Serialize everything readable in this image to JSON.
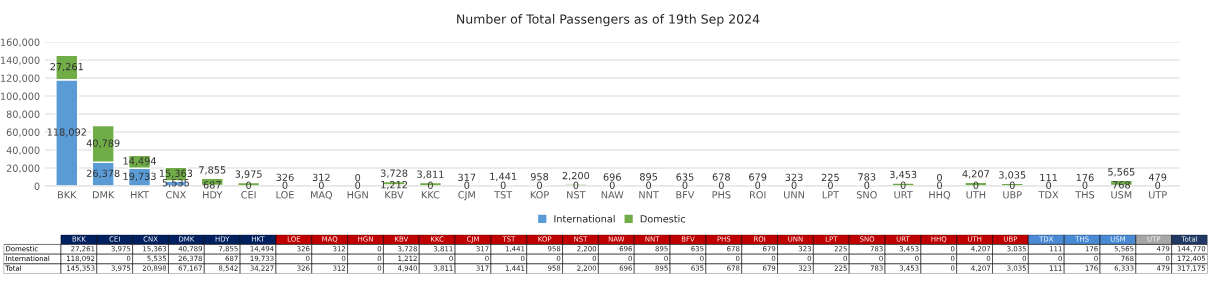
{
  "chart_data": [
    {
      "type": "bar",
      "title": "Number of Total Passengers as of 19th Sep 2024",
      "stacked": true,
      "categories": [
        "BKK",
        "DMK",
        "HKT",
        "CNX",
        "HDY",
        "CEI",
        "LOE",
        "MAQ",
        "HGN",
        "KBV",
        "KKC",
        "CJM",
        "TST",
        "KOP",
        "NST",
        "NAW",
        "NNT",
        "BFV",
        "PHS",
        "ROI",
        "UNN",
        "LPT",
        "SNO",
        "URT",
        "HHQ",
        "UTH",
        "UBP",
        "TDX",
        "THS",
        "USM",
        "UTP"
      ],
      "series": [
        {
          "name": "International",
          "color": "#5b9bd5",
          "values": [
            118092,
            26378,
            19733,
            5535,
            687,
            0,
            0,
            0,
            0,
            1212,
            0,
            0,
            0,
            0,
            0,
            0,
            0,
            0,
            0,
            0,
            0,
            0,
            0,
            0,
            0,
            0,
            0,
            0,
            0,
            768,
            0
          ],
          "value_labels": [
            "118,092",
            "26,378",
            "19,733",
            "5,535",
            "687",
            "0",
            "0",
            "0",
            "0",
            "1,212",
            "0",
            "0",
            "0",
            "0",
            "0",
            "0",
            "0",
            "0",
            "0",
            "0",
            "0",
            "0",
            "0",
            "0",
            "0",
            "0",
            "0",
            "0",
            "0",
            "768",
            "0"
          ]
        },
        {
          "name": "Domestic",
          "color": "#70ad47",
          "values": [
            27261,
            40789,
            14494,
            15363,
            7855,
            3975,
            326,
            312,
            0,
            3728,
            3811,
            317,
            1441,
            958,
            2200,
            696,
            895,
            635,
            678,
            679,
            323,
            225,
            783,
            3453,
            0,
            4207,
            3035,
            111,
            176,
            5565,
            479
          ],
          "value_labels": [
            "27,261",
            "40,789",
            "14,494",
            "15,363",
            "7,855",
            "3,975",
            "326",
            "312",
            "0",
            "3,728",
            "3,811",
            "317",
            "1,441",
            "958",
            "2,200",
            "696",
            "895",
            "635",
            "678",
            "679",
            "323",
            "225",
            "783",
            "3,453",
            "0",
            "4,207",
            "3,035",
            "111",
            "176",
            "5,565",
            "479"
          ]
        }
      ],
      "ylim": [
        0,
        160000
      ],
      "yticks": [
        {
          "value": 0,
          "label": "0"
        },
        {
          "value": 20000,
          "label": "20,000"
        },
        {
          "value": 40000,
          "label": "40,000"
        },
        {
          "value": 60000,
          "label": "60,000"
        },
        {
          "value": 80000,
          "label": "80,000"
        },
        {
          "value": 100000,
          "label": "100,000"
        },
        {
          "value": 120000,
          "label": "120,000"
        },
        {
          "value": 140000,
          "label": "140,000"
        },
        {
          "value": 160000,
          "label": "160,000"
        }
      ],
      "grid": "y",
      "legend": "bottom"
    },
    {
      "type": "other",
      "categories": [
        "BKK",
        "CEI",
        "CNX",
        "DMK",
        "HDY",
        "HKT",
        "LOE",
        "MAQ",
        "HGN",
        "KBV",
        "KKC",
        "CJM",
        "TST",
        "KOP",
        "NST",
        "NAW",
        "NNT",
        "BFV",
        "PHS",
        "ROI",
        "UNN",
        "LPT",
        "SNO",
        "URT",
        "HHQ",
        "UTH",
        "UBP",
        "TDX",
        "THS",
        "USM",
        "UTP",
        "Total"
      ],
      "colors": [
        "#002060",
        "#002060",
        "#002060",
        "#002060",
        "#002060",
        "#002060",
        "#c00000",
        "#c00000",
        "#c00000",
        "#c00000",
        "#c00000",
        "#c00000",
        "#c00000",
        "#c00000",
        "#c00000",
        "#c00000",
        "#c00000",
        "#c00000",
        "#c00000",
        "#c00000",
        "#c00000",
        "#c00000",
        "#c00000",
        "#c00000",
        "#c00000",
        "#c00000",
        "#c00000",
        "#4a8ad4",
        "#4a8ad4",
        "#4a8ad4",
        "#a6a6a6",
        "#1f3864"
      ],
      "series": [
        {
          "name": "Domestic",
          "values": [
            27261,
            3975,
            15363,
            40789,
            7855,
            14494,
            326,
            312,
            0,
            3728,
            3811,
            317,
            1441,
            958,
            2200,
            696,
            895,
            635,
            678,
            679,
            323,
            225,
            783,
            3453,
            0,
            4207,
            3035,
            111,
            176,
            5565,
            479,
            144770
          ],
          "value_labels": [
            "27,261",
            "3,975",
            "15,363",
            "40,789",
            "7,855",
            "14,494",
            "326",
            "312",
            "0",
            "3,728",
            "3,811",
            "317",
            "1,441",
            "958",
            "2,200",
            "696",
            "895",
            "635",
            "678",
            "679",
            "323",
            "225",
            "783",
            "3,453",
            "0",
            "4,207",
            "3,035",
            "111",
            "176",
            "5,565",
            "479",
            "144,770"
          ]
        },
        {
          "name": "International",
          "values": [
            118092,
            0,
            5535,
            26378,
            687,
            19733,
            0,
            0,
            0,
            1212,
            0,
            0,
            0,
            0,
            0,
            0,
            0,
            0,
            0,
            0,
            0,
            0,
            0,
            0,
            0,
            0,
            0,
            0,
            0,
            768,
            0,
            172405
          ],
          "value_labels": [
            "118,092",
            "0",
            "5,535",
            "26,378",
            "687",
            "19,733",
            "0",
            "0",
            "0",
            "1,212",
            "0",
            "0",
            "0",
            "0",
            "0",
            "0",
            "0",
            "0",
            "0",
            "0",
            "0",
            "0",
            "0",
            "0",
            "0",
            "0",
            "0",
            "0",
            "0",
            "768",
            "0",
            "172,405"
          ]
        },
        {
          "name": "Total",
          "values": [
            145353,
            3975,
            20898,
            67167,
            8542,
            34227,
            326,
            312,
            0,
            4940,
            3811,
            317,
            1441,
            958,
            2200,
            696,
            895,
            635,
            678,
            679,
            323,
            225,
            783,
            3453,
            0,
            4207,
            3035,
            111,
            176,
            6333,
            479,
            317175
          ],
          "value_labels": [
            "145,353",
            "3,975",
            "20,898",
            "67,167",
            "8,542",
            "34,227",
            "326",
            "312",
            "0",
            "4,940",
            "3,811",
            "317",
            "1,441",
            "958",
            "2,200",
            "696",
            "895",
            "635",
            "678",
            "679",
            "323",
            "225",
            "783",
            "3,453",
            "0",
            "4,207",
            "3,035",
            "111",
            "176",
            "6,333",
            "479",
            "317,175"
          ]
        }
      ]
    }
  ]
}
